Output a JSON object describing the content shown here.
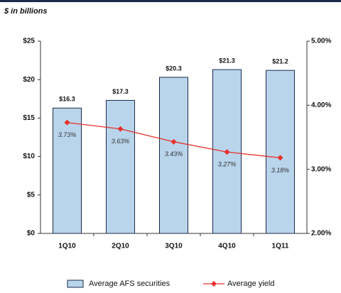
{
  "chart_data": {
    "type": "bar",
    "subtitle": "$ in billions",
    "categories": [
      "1Q10",
      "2Q10",
      "3Q10",
      "4Q10",
      "1Q11"
    ],
    "series": [
      {
        "name": "Average AFS securities",
        "type": "bar",
        "color": "#b9d5ec",
        "values": [
          16.3,
          17.3,
          20.3,
          21.3,
          21.2
        ],
        "value_labels": [
          "$16.3",
          "$17.3",
          "$20.3",
          "$21.3",
          "$21.2"
        ]
      },
      {
        "name": "Average yield",
        "type": "line",
        "axis": "y2",
        "color": "#e8302a",
        "values": [
          3.73,
          3.63,
          3.43,
          3.27,
          3.18
        ],
        "value_labels": [
          "3.73%",
          "3.63%",
          "3.43%",
          "3.27%",
          "3.18%"
        ]
      }
    ],
    "ylim": [
      0,
      25
    ],
    "yticks": [
      {
        "value": 0,
        "label": "$0"
      },
      {
        "value": 5,
        "label": "$5"
      },
      {
        "value": 10,
        "label": "$10"
      },
      {
        "value": 15,
        "label": "$15"
      },
      {
        "value": 20,
        "label": "$20"
      },
      {
        "value": 25,
        "label": "$25"
      }
    ],
    "y2lim": [
      2,
      5
    ],
    "y2ticks": [
      {
        "value": 2,
        "label": "2.00%"
      },
      {
        "value": 3,
        "label": "3.00%"
      },
      {
        "value": 4,
        "label": "4.00%"
      },
      {
        "value": 5,
        "label": "5.00%"
      }
    ],
    "legend": "bottom"
  }
}
